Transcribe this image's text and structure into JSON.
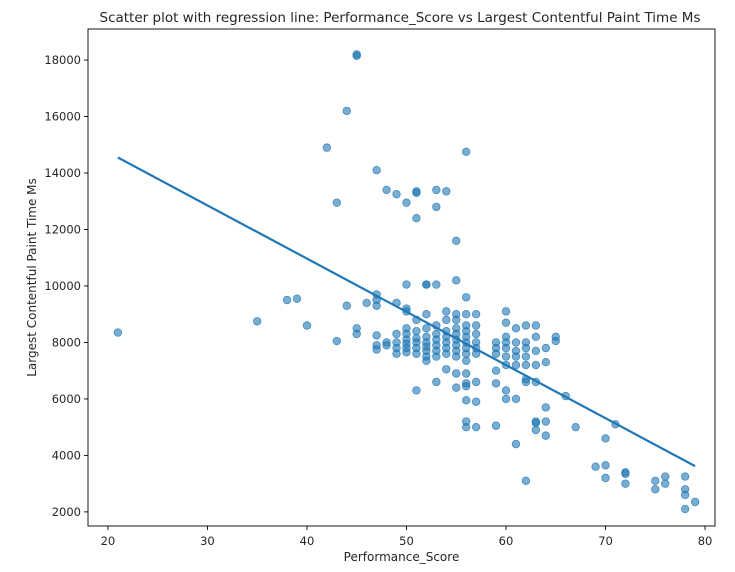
{
  "chart_data": {
    "type": "scatter",
    "title": "Scatter plot with regression line: Performance_Score vs Largest Contentful Paint Time Ms",
    "xlabel": "Performance_Score",
    "ylabel": "Largest Contentful Paint Time Ms",
    "xlim": [
      18,
      81
    ],
    "ylim": [
      1500,
      19100
    ],
    "x_ticks": [
      20,
      30,
      40,
      50,
      60,
      70,
      80
    ],
    "y_ticks": [
      2000,
      4000,
      6000,
      8000,
      10000,
      12000,
      14000,
      16000,
      18000
    ],
    "grid": false,
    "point_color": "#1f77b4",
    "line_color": "#1f77b4",
    "regression_line": {
      "x": [
        21,
        79
      ],
      "y": [
        14550,
        3620
      ]
    },
    "points": [
      [
        21,
        8350
      ],
      [
        35,
        8750
      ],
      [
        38,
        9500
      ],
      [
        39,
        9550
      ],
      [
        40,
        8600
      ],
      [
        42,
        14900
      ],
      [
        43,
        12950
      ],
      [
        43,
        8050
      ],
      [
        44,
        16200
      ],
      [
        44,
        9300
      ],
      [
        45,
        18200
      ],
      [
        45,
        18150
      ],
      [
        45,
        8500
      ],
      [
        45,
        8300
      ],
      [
        46,
        9400
      ],
      [
        47,
        14100
      ],
      [
        47,
        9700
      ],
      [
        47,
        9500
      ],
      [
        47,
        9300
      ],
      [
        47,
        8250
      ],
      [
        47,
        7900
      ],
      [
        47,
        7750
      ],
      [
        48,
        13400
      ],
      [
        48,
        8000
      ],
      [
        48,
        7900
      ],
      [
        49,
        13250
      ],
      [
        49,
        9400
      ],
      [
        49,
        8300
      ],
      [
        49,
        8000
      ],
      [
        49,
        7800
      ],
      [
        49,
        7600
      ],
      [
        50,
        12950
      ],
      [
        50,
        10050
      ],
      [
        50,
        9200
      ],
      [
        50,
        9100
      ],
      [
        50,
        8500
      ],
      [
        50,
        8300
      ],
      [
        50,
        8100
      ],
      [
        50,
        7950
      ],
      [
        50,
        7800
      ],
      [
        50,
        7650
      ],
      [
        51,
        13350
      ],
      [
        51,
        13300
      ],
      [
        51,
        12400
      ],
      [
        51,
        8800
      ],
      [
        51,
        8400
      ],
      [
        51,
        8150
      ],
      [
        51,
        8000
      ],
      [
        51,
        7800
      ],
      [
        51,
        7600
      ],
      [
        51,
        6300
      ],
      [
        52,
        10050
      ],
      [
        52,
        10050
      ],
      [
        52,
        9000
      ],
      [
        52,
        8500
      ],
      [
        52,
        8200
      ],
      [
        52,
        8000
      ],
      [
        52,
        7850
      ],
      [
        52,
        7700
      ],
      [
        52,
        7500
      ],
      [
        52,
        7350
      ],
      [
        53,
        13400
      ],
      [
        53,
        12800
      ],
      [
        53,
        10050
      ],
      [
        53,
        8600
      ],
      [
        53,
        8300
      ],
      [
        53,
        8100
      ],
      [
        53,
        7900
      ],
      [
        53,
        7700
      ],
      [
        53,
        7500
      ],
      [
        53,
        6600
      ],
      [
        54,
        13350
      ],
      [
        54,
        9100
      ],
      [
        54,
        8800
      ],
      [
        54,
        8400
      ],
      [
        54,
        8200
      ],
      [
        54,
        8000
      ],
      [
        54,
        7800
      ],
      [
        54,
        7600
      ],
      [
        54,
        7050
      ],
      [
        55,
        11600
      ],
      [
        55,
        10200
      ],
      [
        55,
        9000
      ],
      [
        55,
        8800
      ],
      [
        55,
        8500
      ],
      [
        55,
        8300
      ],
      [
        55,
        8100
      ],
      [
        55,
        7900
      ],
      [
        55,
        7700
      ],
      [
        55,
        7500
      ],
      [
        55,
        6900
      ],
      [
        55,
        6400
      ],
      [
        56,
        14750
      ],
      [
        56,
        9600
      ],
      [
        56,
        9000
      ],
      [
        56,
        8600
      ],
      [
        56,
        8400
      ],
      [
        56,
        8200
      ],
      [
        56,
        8000
      ],
      [
        56,
        7800
      ],
      [
        56,
        7600
      ],
      [
        56,
        7350
      ],
      [
        56,
        6900
      ],
      [
        56,
        6550
      ],
      [
        56,
        6450
      ],
      [
        56,
        5950
      ],
      [
        56,
        5200
      ],
      [
        56,
        5000
      ],
      [
        57,
        9000
      ],
      [
        57,
        8600
      ],
      [
        57,
        8300
      ],
      [
        57,
        8000
      ],
      [
        57,
        7800
      ],
      [
        57,
        7600
      ],
      [
        57,
        6600
      ],
      [
        57,
        5900
      ],
      [
        57,
        5000
      ],
      [
        59,
        8000
      ],
      [
        59,
        7800
      ],
      [
        59,
        7600
      ],
      [
        59,
        7000
      ],
      [
        59,
        6550
      ],
      [
        59,
        5050
      ],
      [
        60,
        9100
      ],
      [
        60,
        8700
      ],
      [
        60,
        8200
      ],
      [
        60,
        8000
      ],
      [
        60,
        7800
      ],
      [
        60,
        7500
      ],
      [
        60,
        7200
      ],
      [
        60,
        6300
      ],
      [
        60,
        6000
      ],
      [
        61,
        8500
      ],
      [
        61,
        8000
      ],
      [
        61,
        7700
      ],
      [
        61,
        7500
      ],
      [
        61,
        7200
      ],
      [
        61,
        6000
      ],
      [
        61,
        4400
      ],
      [
        62,
        8600
      ],
      [
        62,
        8000
      ],
      [
        62,
        7800
      ],
      [
        62,
        7500
      ],
      [
        62,
        7200
      ],
      [
        62,
        6700
      ],
      [
        62,
        6600
      ],
      [
        62,
        3100
      ],
      [
        63,
        8600
      ],
      [
        63,
        8200
      ],
      [
        63,
        7700
      ],
      [
        63,
        7200
      ],
      [
        63,
        6600
      ],
      [
        63,
        5200
      ],
      [
        63,
        5150
      ],
      [
        63,
        4900
      ],
      [
        64,
        7800
      ],
      [
        64,
        7300
      ],
      [
        64,
        5700
      ],
      [
        64,
        5200
      ],
      [
        64,
        4700
      ],
      [
        65,
        8200
      ],
      [
        65,
        8050
      ],
      [
        66,
        6100
      ],
      [
        67,
        5000
      ],
      [
        69,
        3600
      ],
      [
        70,
        4600
      ],
      [
        70,
        3650
      ],
      [
        70,
        3200
      ],
      [
        71,
        5100
      ],
      [
        72,
        3400
      ],
      [
        72,
        3350
      ],
      [
        72,
        3000
      ],
      [
        75,
        3100
      ],
      [
        75,
        2800
      ],
      [
        76,
        3250
      ],
      [
        76,
        3000
      ],
      [
        78,
        3250
      ],
      [
        78,
        2800
      ],
      [
        78,
        2600
      ],
      [
        78,
        2100
      ],
      [
        79,
        2350
      ]
    ]
  }
}
